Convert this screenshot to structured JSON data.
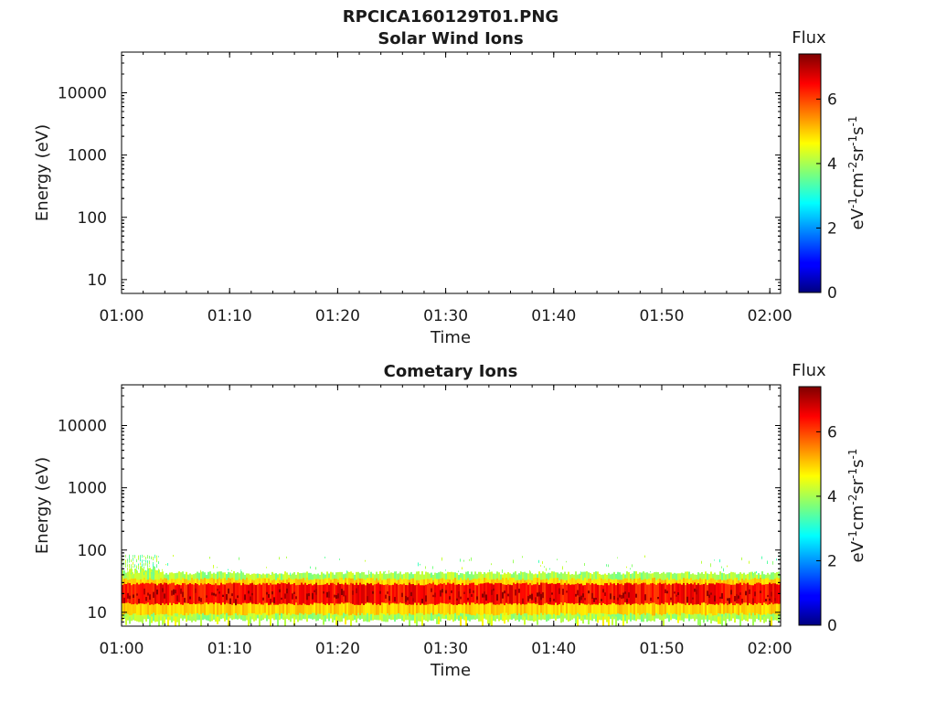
{
  "figure": {
    "title": "RPCICA160129T01.PNG"
  },
  "chart_data": [
    {
      "type": "heatmap",
      "title": "Solar Wind Ions",
      "xlabel": "Time",
      "ylabel": "Energy (eV)",
      "x_tick_labels": [
        "01:00",
        "01:10",
        "01:20",
        "01:30",
        "01:40",
        "01:50",
        "02:00"
      ],
      "y_scale": "log",
      "y_tick_values": [
        10,
        100,
        1000,
        10000
      ],
      "y_tick_labels": [
        "10",
        "100",
        "1000",
        "10000"
      ],
      "xlim": [
        "01:00",
        "02:01"
      ],
      "ylim": [
        6,
        45000
      ],
      "data": "no visible flux",
      "colorbar": {
        "label": "Flux",
        "unit_label": "eV-1cm-2sr-1s-1",
        "tick_values": [
          0,
          2,
          4,
          6
        ],
        "tick_labels": [
          "0",
          "2",
          "4",
          "6"
        ],
        "range": [
          0,
          7.4
        ],
        "colormap": "jet"
      }
    },
    {
      "type": "heatmap",
      "title": "Cometary Ions",
      "xlabel": "Time",
      "ylabel": "Energy (eV)",
      "x_tick_labels": [
        "01:00",
        "01:10",
        "01:20",
        "01:30",
        "01:40",
        "01:50",
        "02:00"
      ],
      "y_scale": "log",
      "y_tick_values": [
        10,
        100,
        1000,
        10000
      ],
      "y_tick_labels": [
        "10",
        "100",
        "1000",
        "10000"
      ],
      "xlim": [
        "01:00",
        "02:01"
      ],
      "ylim": [
        6,
        45000
      ],
      "data": {
        "band_center_energy_eV": 20,
        "band_core_range_eV": [
          13,
          30
        ],
        "band_full_range_eV": [
          8,
          40
        ],
        "peak_flux": 7,
        "sparse_flux_up_to_eV": 85
      },
      "colorbar": {
        "label": "Flux",
        "unit_label": "eV-1cm-2sr-1s-1",
        "tick_values": [
          0,
          2,
          4,
          6
        ],
        "tick_labels": [
          "0",
          "2",
          "4",
          "6"
        ],
        "range": [
          0,
          7.4
        ],
        "colormap": "jet"
      }
    }
  ]
}
